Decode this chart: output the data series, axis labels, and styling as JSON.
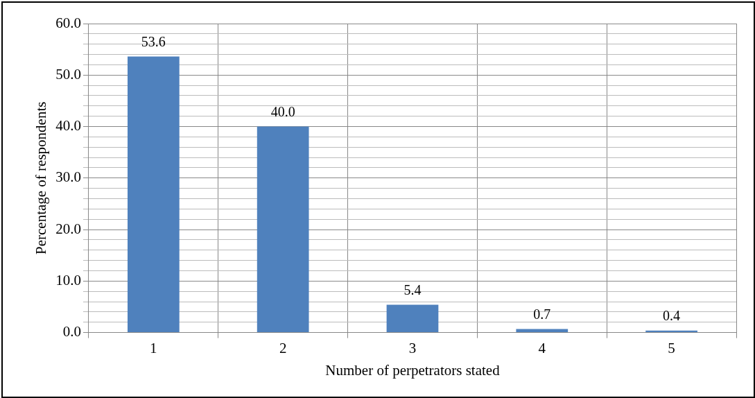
{
  "chart_data": {
    "type": "bar",
    "xlabel": "Number of perpetrators stated",
    "ylabel": "Percentage of respondents",
    "categories": [
      "1",
      "2",
      "3",
      "4",
      "5"
    ],
    "values": [
      53.6,
      40.0,
      5.4,
      0.7,
      0.4
    ],
    "color": "#4f81bd",
    "value_labels": [
      "53.6",
      "40.0",
      "5.4",
      "0.7",
      "0.4"
    ],
    "ylim": [
      0,
      60
    ],
    "yticks": [
      {
        "value": 0,
        "label": "0.0"
      },
      {
        "value": 2,
        "label": null
      },
      {
        "value": 4,
        "label": null
      },
      {
        "value": 6,
        "label": null
      },
      {
        "value": 8,
        "label": null
      },
      {
        "value": 10,
        "label": "10.0"
      },
      {
        "value": 12,
        "label": null
      },
      {
        "value": 14,
        "label": null
      },
      {
        "value": 16,
        "label": null
      },
      {
        "value": 18,
        "label": null
      },
      {
        "value": 20,
        "label": "20.0"
      },
      {
        "value": 22,
        "label": null
      },
      {
        "value": 24,
        "label": null
      },
      {
        "value": 26,
        "label": null
      },
      {
        "value": 28,
        "label": null
      },
      {
        "value": 30,
        "label": "30.0"
      },
      {
        "value": 32,
        "label": null
      },
      {
        "value": 34,
        "label": null
      },
      {
        "value": 36,
        "label": null
      },
      {
        "value": 38,
        "label": null
      },
      {
        "value": 40,
        "label": "40.0"
      },
      {
        "value": 42,
        "label": null
      },
      {
        "value": 44,
        "label": null
      },
      {
        "value": 46,
        "label": null
      },
      {
        "value": 48,
        "label": null
      },
      {
        "value": 50,
        "label": "50.0"
      },
      {
        "value": 52,
        "label": null
      },
      {
        "value": 54,
        "label": null
      },
      {
        "value": 56,
        "label": null
      },
      {
        "value": 58,
        "label": null
      },
      {
        "value": 60,
        "label": "60.0"
      }
    ],
    "grid": true,
    "legend": false
  }
}
